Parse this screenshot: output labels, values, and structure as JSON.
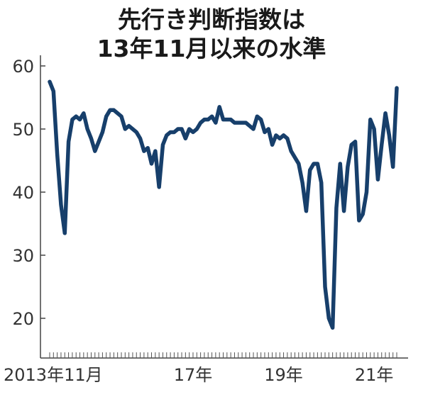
{
  "chart_data": {
    "type": "line",
    "title": "先行き判断指数は",
    "subtitle": "13年11月以来の水準",
    "xlabel": "",
    "ylabel": "",
    "ylim": [
      15,
      63
    ],
    "y_ticks": [
      "60",
      "50",
      "40",
      "30",
      "20"
    ],
    "x_tick_labels": [
      {
        "label": "2013年11月",
        "at": 0
      },
      {
        "label": "17年",
        "at": 38
      },
      {
        "label": "19年",
        "at": 62
      },
      {
        "label": "21年",
        "at": 86
      }
    ],
    "line_color": "#173f6b",
    "series": [
      {
        "x_start": "2013-11",
        "frequency": "monthly",
        "values": [
          57.5,
          56,
          46,
          38,
          33.5,
          48,
          51.5,
          52,
          51.5,
          52.5,
          50,
          48.5,
          46.5,
          48,
          49.5,
          52,
          53,
          53,
          52.5,
          52,
          50,
          50.5,
          50,
          49.5,
          48.5,
          46.5,
          47,
          44.5,
          46.5,
          40.8,
          47.5,
          49,
          49.5,
          49.5,
          50,
          50,
          48.5,
          50,
          49.5,
          50,
          51,
          51.5,
          51.5,
          52,
          51,
          53.5,
          51.5,
          51.5,
          51.5,
          51,
          51,
          51,
          51,
          50.5,
          50,
          52,
          51.5,
          49.5,
          50,
          47.5,
          49,
          48.5,
          49,
          48.5,
          46.5,
          45.5,
          44.5,
          41.5,
          37,
          43.5,
          44.5,
          44.5,
          41.5,
          25,
          20,
          18.5,
          37.5,
          44.5,
          37,
          44,
          47.5,
          48,
          35.5,
          36.5,
          40,
          51.5,
          50,
          42,
          47.5,
          52.5,
          49,
          44,
          56.5
        ]
      }
    ]
  }
}
